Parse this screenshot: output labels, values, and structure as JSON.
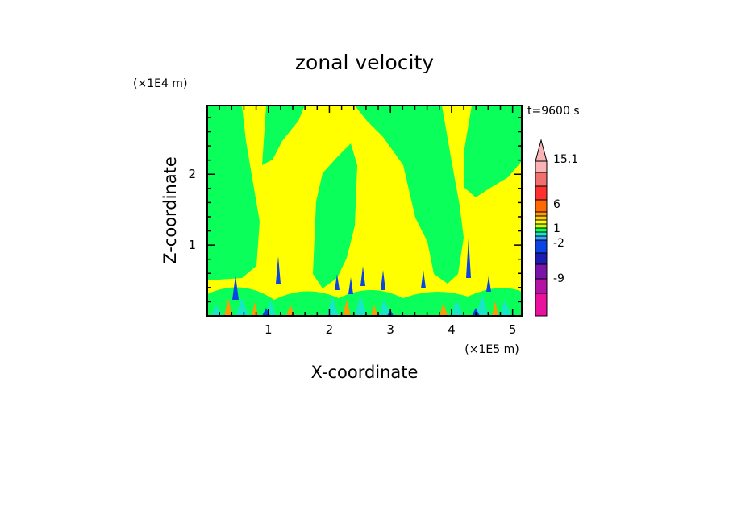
{
  "chart_data": {
    "type": "heatmap",
    "title": "zonal velocity",
    "xlabel": "X-coordinate",
    "ylabel": "Z-coordinate",
    "x_unit": "(×1E5 m)",
    "y_unit": "(×1E4 m)",
    "time_label": "t=9600 s",
    "xlim": [
      0,
      5.15
    ],
    "ylim": [
      0,
      2.97
    ],
    "x_ticks": [
      "1",
      "2",
      "3",
      "4",
      "5"
    ],
    "y_ticks": [
      "1",
      "2"
    ],
    "x_tick_values": [
      1,
      2,
      3,
      4,
      5
    ],
    "y_tick_values": [
      1,
      2
    ],
    "colorbar_labels": [
      "15.1",
      "6",
      "1",
      "-2",
      "-9"
    ],
    "colorbar_levels": [
      {
        "bin": "below -9",
        "color": "#e8129c"
      },
      {
        "bin": "-9",
        "color": "#b314a6"
      },
      {
        "bin": "-7",
        "color": "#7a14a8"
      },
      {
        "bin": "-5",
        "color": "#1c1cb4"
      },
      {
        "bin": "-3",
        "color": "#0a44e6"
      },
      {
        "bin": "-2",
        "color": "#3fa9ff"
      },
      {
        "bin": "-1",
        "color": "#18e6c8"
      },
      {
        "bin": "0",
        "color": "#0aff5a"
      },
      {
        "bin": "1",
        "color": "#c8ff00"
      },
      {
        "bin": "2",
        "color": "#ffff00"
      },
      {
        "bin": "3",
        "color": "#ffd000"
      },
      {
        "bin": "4",
        "color": "#ff9a00"
      },
      {
        "bin": "6",
        "color": "#ff6a00"
      },
      {
        "bin": "9",
        "color": "#ff3030"
      },
      {
        "bin": "12",
        "color": "#f07070"
      },
      {
        "bin": "15.1",
        "color": "#f8b4b4"
      }
    ],
    "field_colors": {
      "positive": "#ffff00",
      "near_zero": "#0aff5a",
      "weak_negative": "#18e6c8",
      "strong_negative": "#0a44e6",
      "strong_positive": "#ff9a00"
    },
    "regions_description_free": true
  }
}
